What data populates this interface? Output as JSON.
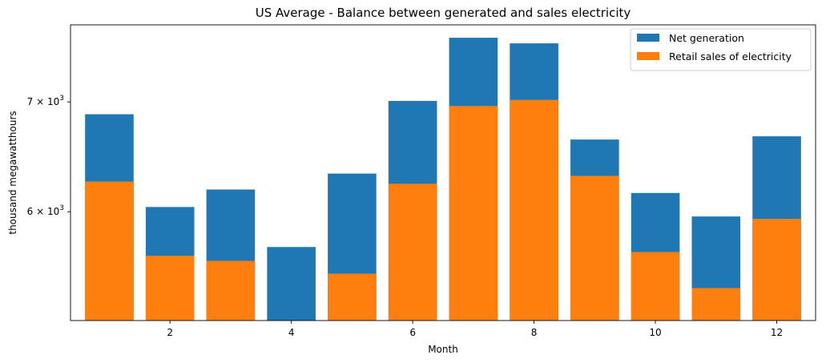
{
  "chart_data": {
    "type": "bar",
    "title": "US Average - Balance between generated and sales electricity",
    "xlabel": "Month",
    "ylabel": "thousand megawatthours",
    "yscale": "log",
    "x": [
      1,
      2,
      3,
      4,
      5,
      6,
      7,
      8,
      9,
      10,
      11,
      12
    ],
    "xticks": [
      2,
      4,
      6,
      8,
      10,
      12
    ],
    "xlim": [
      0.36,
      12.64
    ],
    "ylim": [
      5150,
      7800
    ],
    "yticks": [
      6000,
      7000
    ],
    "ytick_base": "10",
    "ytick_exponent": "3",
    "ytick_mantissas": [
      "6 × ",
      "7 × "
    ],
    "series": [
      {
        "name": "Net generation",
        "color": "#1f77b4",
        "values": [
          6880,
          6040,
          6190,
          5710,
          6330,
          7010,
          7660,
          7600,
          6640,
          6160,
          5960,
          6670
        ]
      },
      {
        "name": "Retail sales of electricity",
        "color": "#ff7f0e",
        "values": [
          6260,
          5640,
          5600,
          5130,
          5500,
          6240,
          6960,
          7020,
          6310,
          5670,
          5390,
          5940
        ]
      }
    ],
    "legend_position": "top-right",
    "bar_mode": "overlay"
  }
}
